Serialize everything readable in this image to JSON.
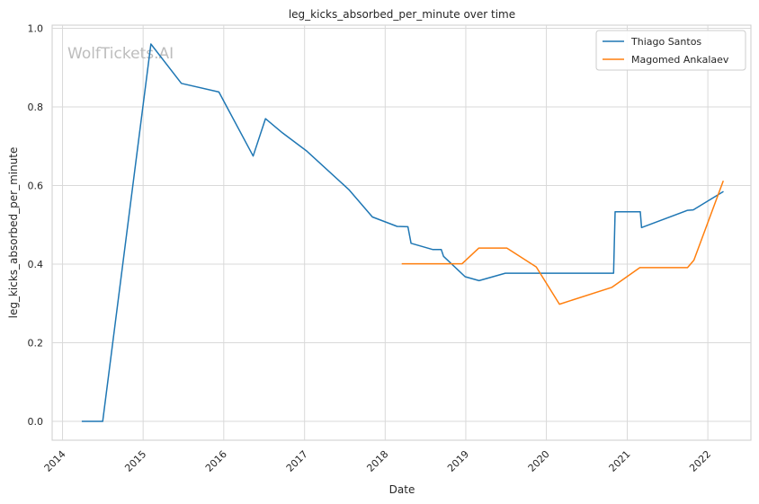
{
  "chart_data": {
    "type": "line",
    "title": "leg_kicks_absorbed_per_minute over time",
    "xlabel": "Date",
    "ylabel": "leg_kicks_absorbed_per_minute",
    "watermark": "WolfTickets.AI",
    "xlim": [
      "2013-11-15",
      "2022-07-15"
    ],
    "ylim": [
      -0.048,
      1.008
    ],
    "x_ticks": [
      "2014",
      "2015",
      "2016",
      "2017",
      "2018",
      "2019",
      "2020",
      "2021",
      "2022"
    ],
    "y_ticks": [
      "0.0",
      "0.2",
      "0.4",
      "0.6",
      "0.8",
      "1.0"
    ],
    "grid": true,
    "legend_position": "top-right",
    "series": [
      {
        "name": "Thiago Santos",
        "color": "#1f77b4",
        "points": [
          [
            "2014-03-29",
            0.0
          ],
          [
            "2014-07-02",
            0.0
          ],
          [
            "2015-02-05",
            0.96
          ],
          [
            "2015-06-23",
            0.86
          ],
          [
            "2015-12-10",
            0.838
          ],
          [
            "2016-05-13",
            0.675
          ],
          [
            "2016-07-08",
            0.77
          ],
          [
            "2016-09-23",
            0.734
          ],
          [
            "2017-01-12",
            0.687
          ],
          [
            "2017-07-20",
            0.59
          ],
          [
            "2017-11-04",
            0.52
          ],
          [
            "2018-02-24",
            0.496
          ],
          [
            "2018-04-14",
            0.495
          ],
          [
            "2018-04-28",
            0.453
          ],
          [
            "2018-08-05",
            0.437
          ],
          [
            "2018-09-12",
            0.437
          ],
          [
            "2018-09-22",
            0.42
          ],
          [
            "2018-12-29",
            0.368
          ],
          [
            "2019-03-02",
            0.358
          ],
          [
            "2019-06-29",
            0.377
          ],
          [
            "2020-10-31",
            0.377
          ],
          [
            "2020-11-07",
            0.533
          ],
          [
            "2021-03-01",
            0.533
          ],
          [
            "2021-03-07",
            0.493
          ],
          [
            "2021-10-01",
            0.537
          ],
          [
            "2021-10-27",
            0.538
          ],
          [
            "2022-03-13",
            0.585
          ]
        ]
      },
      {
        "name": "Magomed Ankalaev",
        "color": "#ff7f0e",
        "points": [
          [
            "2018-03-17",
            0.401
          ],
          [
            "2018-12-15",
            0.401
          ],
          [
            "2019-03-01",
            0.441
          ],
          [
            "2019-07-06",
            0.441
          ],
          [
            "2019-11-16",
            0.393
          ],
          [
            "2020-02-29",
            0.298
          ],
          [
            "2020-10-24",
            0.341
          ],
          [
            "2021-02-27",
            0.391
          ],
          [
            "2021-10-01",
            0.391
          ],
          [
            "2021-10-30",
            0.41
          ],
          [
            "2022-03-12",
            0.612
          ]
        ]
      }
    ]
  }
}
